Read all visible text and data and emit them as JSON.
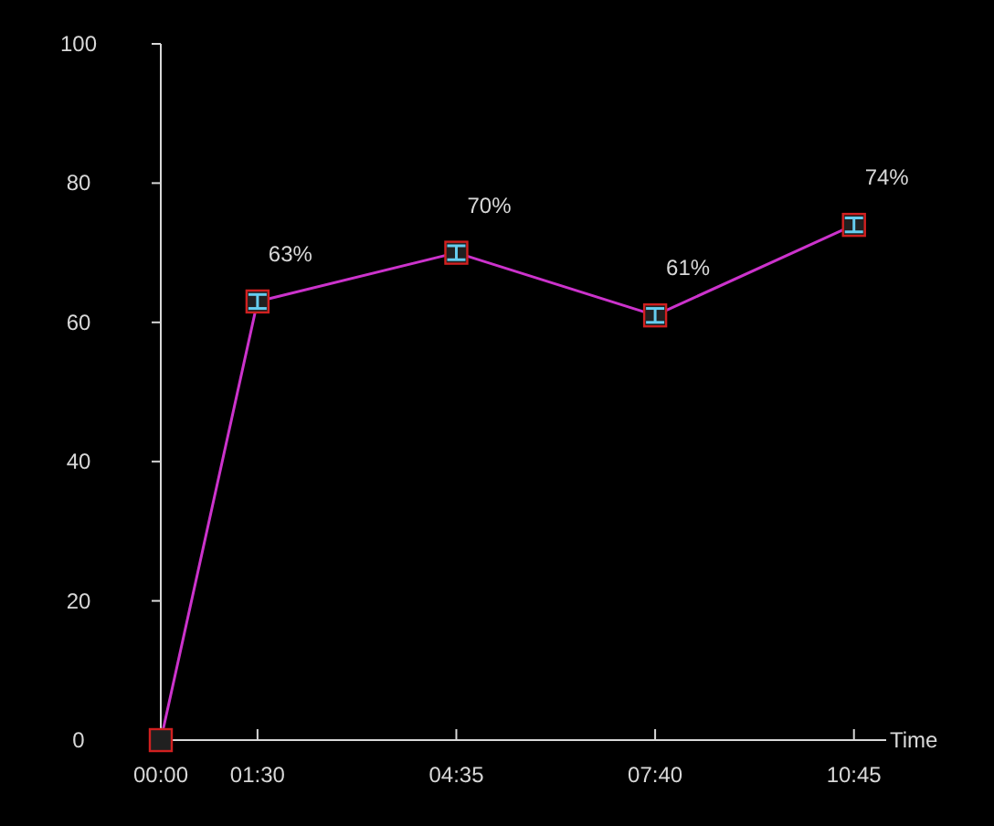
{
  "chart_data": {
    "type": "line",
    "xlabel": "Time",
    "x": [
      0,
      1.5,
      4.5833,
      7.6667,
      10.75
    ],
    "series": [
      {
        "color": "#cc33cc",
        "values": [
          0,
          63,
          70,
          61,
          74
        ],
        "errors": [
          null,
          1,
          1,
          1,
          1
        ],
        "value_labels": [
          null,
          "63%",
          "70%",
          "61%",
          "74%"
        ]
      }
    ],
    "xlim": [
      0,
      11.25
    ],
    "xticks": [
      {
        "value": 0,
        "label": "00:00"
      },
      {
        "value": 1.5,
        "label": "01:30"
      },
      {
        "value": 4.5833,
        "label": "04:35"
      },
      {
        "value": 7.6667,
        "label": "07:40"
      },
      {
        "value": 10.75,
        "label": "10:45"
      }
    ],
    "ylim": [
      0,
      100
    ],
    "yticks": [
      0,
      20,
      40,
      60,
      80,
      100
    ],
    "marker": "square",
    "line_style": "solid",
    "grid": false
  }
}
